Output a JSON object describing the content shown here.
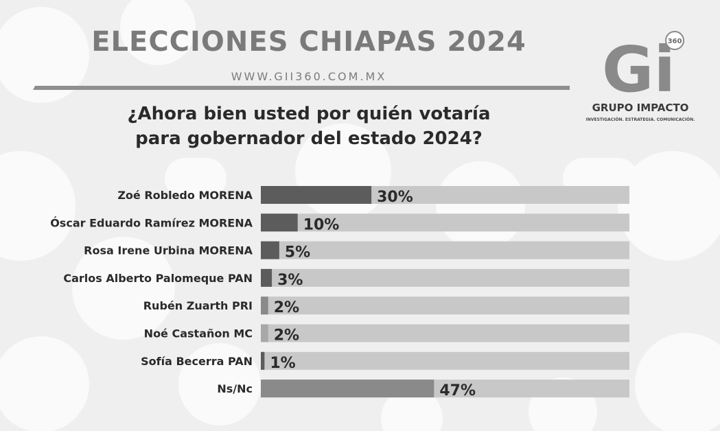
{
  "header": {
    "title": "ELECCIONES CHIAPAS 2024",
    "website": "WWW.GII360.COM.MX",
    "question_line1": "¿Ahora bien usted por quién votaría",
    "question_line2": "para gobernador del estado 2024?"
  },
  "logo": {
    "badge": "360",
    "letters": "Gi",
    "name": "GRUPO IMPACTO",
    "tagline": "INVESTIGACIÓN. ESTRATEGIA. COMUNICACIÓN."
  },
  "colors": {
    "background": "#efefef",
    "track": "#c8c8c8",
    "bar_dark": "#5c5c5c",
    "bar_medium": "#8a8a8a",
    "bar_light": "#a8a8a8",
    "title": "#7a7a7a"
  },
  "chart_data": {
    "type": "bar",
    "orientation": "horizontal",
    "xlim": [
      0,
      100
    ],
    "categories": [
      "Zoé Robledo MORENA",
      "Óscar Eduardo Ramírez MORENA",
      "Rosa Irene Urbina MORENA",
      "Carlos Alberto Palomeque PAN",
      "Rubén Zuarth PRI",
      "Noé Castañon MC",
      "Sofía Becerra PAN",
      "Ns/Nc"
    ],
    "values": [
      30,
      10,
      5,
      3,
      2,
      2,
      1,
      47
    ],
    "value_labels": [
      "30%",
      "10%",
      "5%",
      "3%",
      "2%",
      "2%",
      "1%",
      "47%"
    ],
    "bar_shades": [
      "dark",
      "dark",
      "dark",
      "dark",
      "medium",
      "light",
      "dark",
      "medium"
    ]
  }
}
